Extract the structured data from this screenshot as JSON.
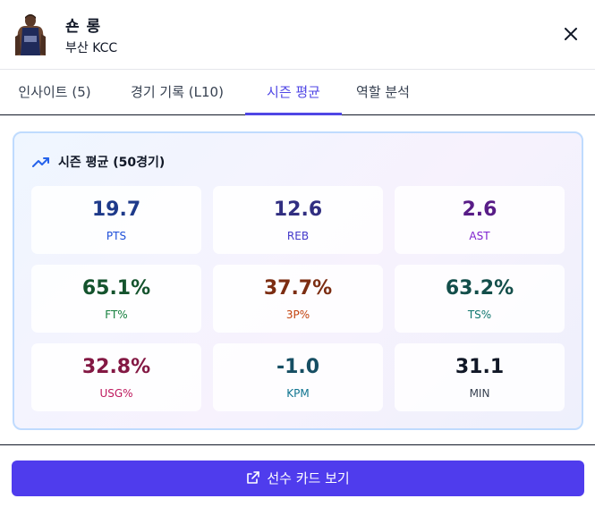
{
  "player": {
    "name": "숀 롱",
    "team": "부산 KCC"
  },
  "tabs": [
    {
      "label": "인사이트 (5)"
    },
    {
      "label": "경기 기록 (L10)"
    },
    {
      "label": "시즌 평균"
    },
    {
      "label": "역할 분석"
    }
  ],
  "active_tab": 2,
  "season": {
    "title": "시즌 평균 (50경기)",
    "stats": [
      {
        "value": "19.7",
        "label": "PTS",
        "color": "#1e3a8a",
        "label_color": "#1d4ed8"
      },
      {
        "value": "12.6",
        "label": "REB",
        "color": "#312e81",
        "label_color": "#4338ca"
      },
      {
        "value": "2.6",
        "label": "AST",
        "color": "#581c87",
        "label_color": "#7e22ce"
      },
      {
        "value": "65.1%",
        "label": "FT%",
        "color": "#14532d",
        "label_color": "#15803d"
      },
      {
        "value": "37.7%",
        "label": "3P%",
        "color": "#7c2d12",
        "label_color": "#c2410c"
      },
      {
        "value": "63.2%",
        "label": "TS%",
        "color": "#134e4a",
        "label_color": "#0f766e"
      },
      {
        "value": "32.8%",
        "label": "USG%",
        "color": "#831843",
        "label_color": "#be185d"
      },
      {
        "value": "-1.0",
        "label": "KPM",
        "color": "#164e63",
        "label_color": "#0e7490"
      },
      {
        "value": "31.1",
        "label": "MIN",
        "color": "#111827",
        "label_color": "#374151"
      }
    ]
  },
  "cta": {
    "label": "선수 카드 보기"
  },
  "icons": {
    "close": "close-icon",
    "trend": "trending-up-icon",
    "external": "external-link-icon"
  },
  "colors": {
    "accent": "#4f46e5",
    "button": "#4f3ced"
  }
}
